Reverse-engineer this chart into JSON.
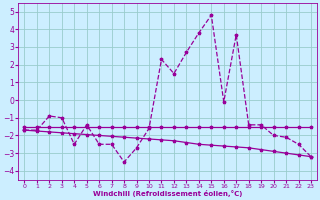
{
  "xlabel": "Windchill (Refroidissement éolien,°C)",
  "background_color": "#cceeff",
  "grid_color": "#99cccc",
  "line_color": "#990099",
  "xlim": [
    -0.5,
    23.5
  ],
  "ylim": [
    -4.5,
    5.5
  ],
  "xticks": [
    0,
    1,
    2,
    3,
    4,
    5,
    6,
    7,
    8,
    9,
    10,
    11,
    12,
    13,
    14,
    15,
    16,
    17,
    18,
    19,
    20,
    21,
    22,
    23
  ],
  "yticks": [
    -4,
    -3,
    -2,
    -1,
    0,
    1,
    2,
    3,
    4,
    5
  ],
  "y_main": [
    -1.7,
    -1.7,
    -0.9,
    -1.0,
    -2.5,
    -1.4,
    -2.5,
    -2.5,
    -3.5,
    -2.7,
    -1.6,
    2.3,
    1.5,
    2.7,
    3.8,
    4.8,
    -0.1,
    3.7,
    -1.4,
    -1.4,
    -2.0,
    -2.1,
    -2.5,
    -3.2
  ],
  "y_trend1": [
    -1.5,
    -1.5,
    -1.5,
    -1.5,
    -1.5,
    -1.5,
    -1.5,
    -1.5,
    -1.5,
    -1.5,
    -1.5,
    -1.5,
    -1.5,
    -1.5,
    -1.5,
    -1.5,
    -1.5,
    -1.5,
    -1.5,
    -1.5,
    -1.5,
    -1.5,
    -1.5,
    -1.5
  ],
  "y_trend2": [
    -1.7,
    -1.75,
    -1.8,
    -1.85,
    -1.9,
    -1.95,
    -2.0,
    -2.05,
    -2.1,
    -2.15,
    -2.2,
    -2.25,
    -2.3,
    -2.4,
    -2.5,
    -2.55,
    -2.6,
    -2.65,
    -2.7,
    -2.8,
    -2.9,
    -3.0,
    -3.1,
    -3.2
  ]
}
